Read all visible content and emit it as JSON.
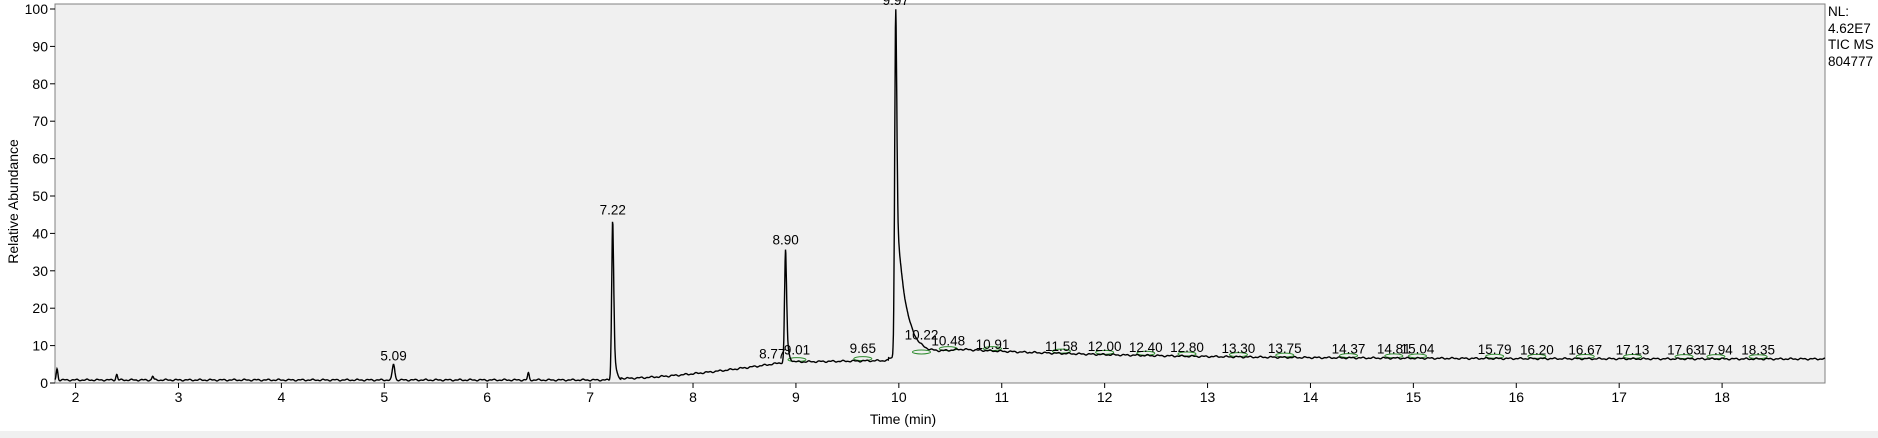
{
  "header_info": {
    "nl_label": "NL:",
    "nl_value": "4.62E7",
    "scan_type": "TIC  MS",
    "file_id": "804777"
  },
  "chart_data": {
    "type": "line",
    "xlabel": "Time (min)",
    "ylabel": "Relative Abundance",
    "xlim": [
      1.8,
      19.0
    ],
    "ylim": [
      0,
      100
    ],
    "x_ticks": [
      2,
      3,
      4,
      5,
      6,
      7,
      8,
      9,
      10,
      11,
      12,
      13,
      14,
      15,
      16,
      17,
      18
    ],
    "y_ticks": [
      0,
      10,
      20,
      30,
      40,
      50,
      60,
      70,
      80,
      90,
      100
    ],
    "peaks": [
      {
        "rt": 5.09,
        "label": "5.09",
        "height": 5
      },
      {
        "rt": 7.22,
        "label": "7.22",
        "height": 44
      },
      {
        "rt": 8.77,
        "label": "8.77",
        "height": 5.5
      },
      {
        "rt": 8.9,
        "label": "8.90",
        "height": 36
      },
      {
        "rt": 9.01,
        "label": "9.01",
        "height": 6.5
      },
      {
        "rt": 9.65,
        "label": "9.65",
        "height": 7
      },
      {
        "rt": 9.97,
        "label": "9.97",
        "height": 100
      },
      {
        "rt": 10.22,
        "label": "10.22",
        "height": 10.5
      },
      {
        "rt": 10.48,
        "label": "10.48",
        "height": 9
      },
      {
        "rt": 10.91,
        "label": "10.91",
        "height": 8
      },
      {
        "rt": 11.58,
        "label": "11.58",
        "height": 7.5
      },
      {
        "rt": 12.0,
        "label": "12.00",
        "height": 7.5
      },
      {
        "rt": 12.4,
        "label": "12.40",
        "height": 7.2
      },
      {
        "rt": 12.8,
        "label": "12.80",
        "height": 7.2
      },
      {
        "rt": 13.3,
        "label": "13.30",
        "height": 7
      },
      {
        "rt": 13.75,
        "label": "13.75",
        "height": 7
      },
      {
        "rt": 14.37,
        "label": "14.37",
        "height": 6.8
      },
      {
        "rt": 14.81,
        "label": "14.81",
        "height": 6.8
      },
      {
        "rt": 15.04,
        "label": "15.04",
        "height": 6.8
      },
      {
        "rt": 15.79,
        "label": "15.79",
        "height": 6.7
      },
      {
        "rt": 16.2,
        "label": "16.20",
        "height": 6.5
      },
      {
        "rt": 16.67,
        "label": "16.67",
        "height": 6.5
      },
      {
        "rt": 17.13,
        "label": "17.13",
        "height": 6.5
      },
      {
        "rt": 17.63,
        "label": "17.63",
        "height": 6.5
      },
      {
        "rt": 17.94,
        "label": "17.94",
        "height": 6.5
      },
      {
        "rt": 18.35,
        "label": "18.35",
        "height": 6.5
      }
    ],
    "small_bumps": [
      {
        "rt": 1.82,
        "height": 3
      },
      {
        "rt": 2.4,
        "height": 1.5
      },
      {
        "rt": 2.75,
        "height": 1
      },
      {
        "rt": 6.4,
        "height": 1.8
      }
    ],
    "line_color": "#000000",
    "background_color": "#f0f0f0",
    "integration_marker_color": "#2e8b2e",
    "grid": false
  }
}
